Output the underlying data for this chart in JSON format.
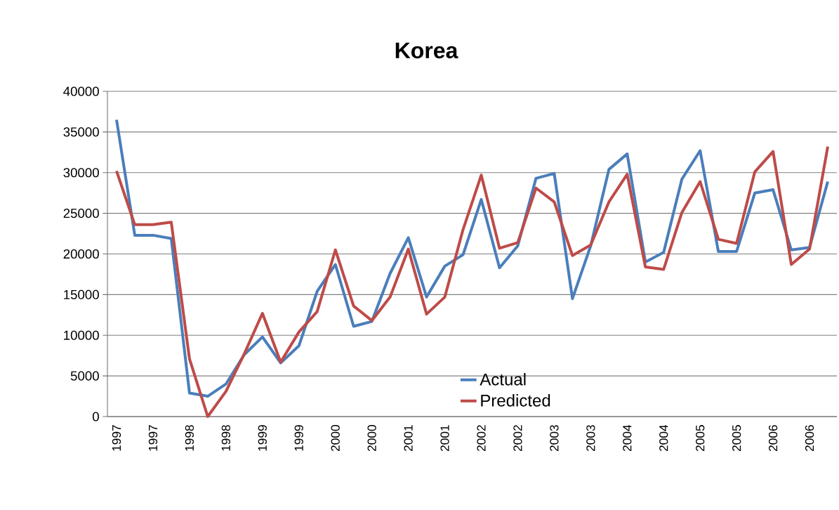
{
  "chart_data": {
    "type": "line",
    "title": "Korea",
    "categories": [
      "1997",
      null,
      "1997",
      null,
      "1998",
      null,
      "1998",
      null,
      "1999",
      null,
      "1999",
      null,
      "2000",
      null,
      "2000",
      null,
      "2001",
      null,
      "2001",
      null,
      "2002",
      null,
      "2002",
      null,
      "2003",
      null,
      "2003",
      null,
      "2004",
      null,
      "2004",
      null,
      "2005",
      null,
      "2005",
      null,
      "2006",
      null,
      "2006",
      null
    ],
    "series": [
      {
        "name": "Actual",
        "color": "#4a7ebb",
        "values": [
          36500,
          22300,
          22300,
          21900,
          2900,
          2500,
          4000,
          7600,
          9800,
          6600,
          8700,
          15400,
          18700,
          11100,
          11700,
          17600,
          22000,
          14700,
          18500,
          19900,
          26700,
          18300,
          21000,
          29300,
          29900,
          14500,
          21000,
          30400,
          32300,
          19000,
          20200,
          29200,
          32700,
          20300,
          20300,
          27500,
          27900,
          20500,
          20800,
          28900
        ]
      },
      {
        "name": "Predicted",
        "color": "#be4b48",
        "values": [
          30200,
          23600,
          23600,
          23900,
          7100,
          0,
          3100,
          7700,
          12700,
          6700,
          10400,
          12900,
          20500,
          13600,
          11800,
          14700,
          20600,
          12600,
          14700,
          23000,
          29700,
          20700,
          21400,
          28100,
          26400,
          19800,
          21100,
          26400,
          29800,
          18400,
          18100,
          25100,
          28900,
          21800,
          21300,
          30100,
          32600,
          18700,
          20600,
          33200
        ]
      }
    ],
    "ylim": [
      0,
      40000
    ],
    "yticks": [
      0,
      5000,
      10000,
      15000,
      20000,
      25000,
      30000,
      35000,
      40000
    ],
    "grid": "y",
    "legend": "bottom",
    "marker": "none",
    "line_style": "solid"
  }
}
